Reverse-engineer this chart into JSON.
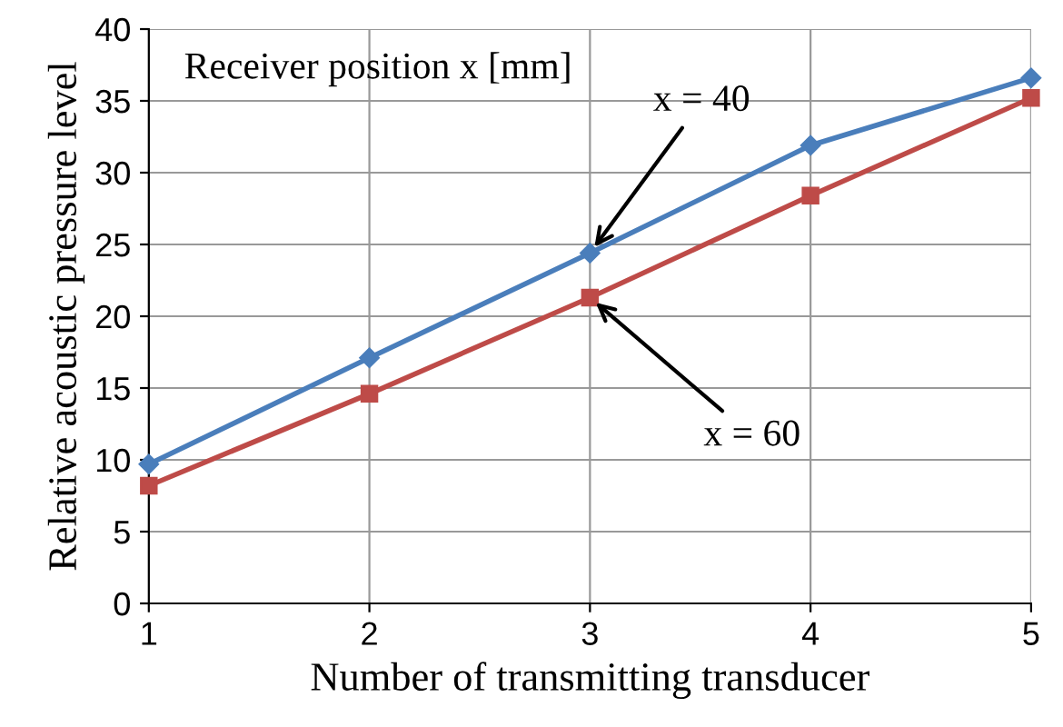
{
  "chart_data": {
    "type": "line",
    "x": [
      1,
      2,
      3,
      4,
      5
    ],
    "series": [
      {
        "name": "x = 40",
        "color": "#4a7ebb",
        "marker": "diamond",
        "values": [
          9.7,
          17.1,
          24.4,
          31.9,
          36.6
        ]
      },
      {
        "name": "x = 60",
        "color": "#be4b48",
        "marker": "square",
        "values": [
          8.2,
          14.6,
          21.3,
          28.4,
          35.2
        ]
      }
    ],
    "xlabel": "Number of transmitting transducer",
    "ylabel": "Relative acoustic pressure level",
    "annotations": [
      "Receiver position x [mm]"
    ],
    "xlim": [
      1,
      5
    ],
    "xticks": [
      1,
      2,
      3,
      4,
      5
    ],
    "ylim": [
      0,
      40
    ],
    "yticks": [
      0,
      5,
      10,
      15,
      20,
      25,
      30,
      35,
      40
    ],
    "grid": true,
    "legend": false,
    "line_style": "solid"
  }
}
